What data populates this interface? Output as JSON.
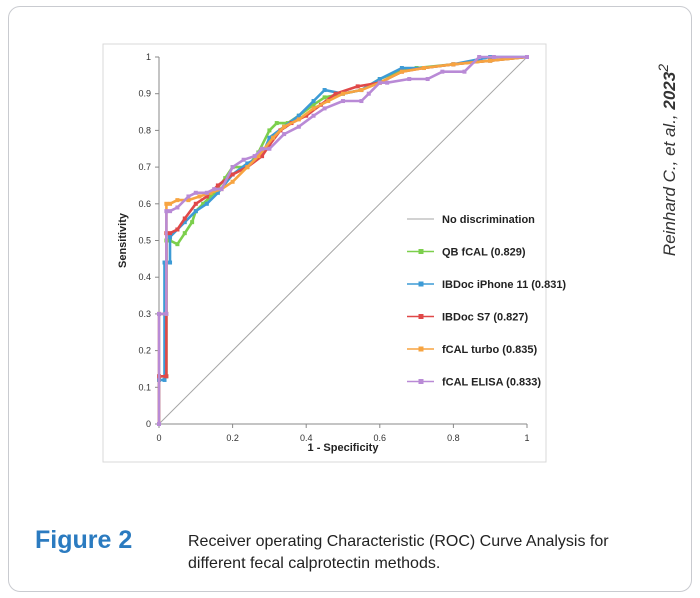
{
  "figure": {
    "label": "Figure 2",
    "caption": "Receiver operating Characteristic (ROC) Curve Analysis for different fecal calprotectin methods.",
    "citation_authors": "Reinhard C., et al., ",
    "citation_year": "2023",
    "citation_ref": "2"
  },
  "chart_data": {
    "type": "line",
    "title": "",
    "xlabel": "1 - Specificity",
    "ylabel": "Sensitivity",
    "xlim": [
      0,
      1
    ],
    "ylim": [
      0,
      1
    ],
    "x_ticks": [
      0,
      0.2,
      0.4,
      0.6,
      0.8,
      1
    ],
    "y_ticks": [
      0,
      0.1,
      0.2,
      0.3,
      0.4,
      0.5,
      0.6,
      0.7,
      0.8,
      0.9,
      1
    ],
    "x_tick_labels": [
      "0",
      "0.2",
      "0.4",
      "0.6",
      "0.8",
      "1"
    ],
    "y_tick_labels": [
      "0",
      "0.1",
      "0.2",
      "0.3",
      "0.4",
      "0.5",
      "0.6",
      "0.7",
      "0.8",
      "0.9",
      "1"
    ],
    "grid": false,
    "legend_position": "center-right",
    "series": [
      {
        "name": "No discrimination",
        "color": "#a6a6a6",
        "marker": false,
        "x": [
          0,
          1
        ],
        "y": [
          0,
          1
        ]
      },
      {
        "name": "QB fCAL (0.829)",
        "color": "#7ccf4c",
        "marker": true,
        "x": [
          0,
          0,
          0.02,
          0.02,
          0.03,
          0.05,
          0.07,
          0.09,
          0.1,
          0.12,
          0.15,
          0.18,
          0.2,
          0.24,
          0.27,
          0.3,
          0.32,
          0.35,
          0.38,
          0.42,
          0.45,
          0.5,
          0.55,
          0.6,
          0.65,
          0.7,
          0.8,
          0.9,
          1
        ],
        "y": [
          0,
          0.13,
          0.13,
          0.5,
          0.5,
          0.49,
          0.52,
          0.55,
          0.58,
          0.6,
          0.63,
          0.67,
          0.7,
          0.7,
          0.74,
          0.8,
          0.82,
          0.82,
          0.84,
          0.87,
          0.89,
          0.9,
          0.91,
          0.94,
          0.96,
          0.97,
          0.98,
          0.99,
          1
        ]
      },
      {
        "name": "IBDoc iPhone 11 (0.831)",
        "color": "#3d9bd6",
        "marker": true,
        "x": [
          0,
          0,
          0.015,
          0.015,
          0.03,
          0.03,
          0.05,
          0.07,
          0.1,
          0.13,
          0.16,
          0.2,
          0.24,
          0.28,
          0.3,
          0.34,
          0.38,
          0.42,
          0.45,
          0.5,
          0.55,
          0.6,
          0.66,
          0.72,
          0.8,
          0.9,
          1
        ],
        "y": [
          0,
          0.12,
          0.12,
          0.44,
          0.44,
          0.51,
          0.53,
          0.55,
          0.58,
          0.6,
          0.63,
          0.68,
          0.71,
          0.73,
          0.78,
          0.81,
          0.84,
          0.88,
          0.91,
          0.9,
          0.91,
          0.94,
          0.97,
          0.97,
          0.98,
          1,
          1
        ]
      },
      {
        "name": "IBDoc S7 (0.827)",
        "color": "#e04848",
        "marker": true,
        "x": [
          0,
          0,
          0.02,
          0.02,
          0.03,
          0.05,
          0.07,
          0.1,
          0.13,
          0.16,
          0.2,
          0.24,
          0.28,
          0.3,
          0.33,
          0.36,
          0.4,
          0.44,
          0.48,
          0.54,
          0.6,
          0.66,
          0.72,
          0.8,
          0.9,
          1
        ],
        "y": [
          0,
          0.13,
          0.13,
          0.52,
          0.52,
          0.53,
          0.56,
          0.6,
          0.62,
          0.65,
          0.68,
          0.7,
          0.73,
          0.76,
          0.8,
          0.82,
          0.84,
          0.87,
          0.9,
          0.92,
          0.93,
          0.96,
          0.97,
          0.98,
          0.99,
          1
        ]
      },
      {
        "name": "fCAL turbo (0.835)",
        "color": "#f7a441",
        "marker": true,
        "x": [
          0,
          0,
          0.02,
          0.02,
          0.03,
          0.05,
          0.08,
          0.11,
          0.14,
          0.17,
          0.2,
          0.24,
          0.27,
          0.31,
          0.34,
          0.38,
          0.42,
          0.46,
          0.5,
          0.55,
          0.6,
          0.66,
          0.72,
          0.8,
          0.9,
          1
        ],
        "y": [
          0,
          0.3,
          0.3,
          0.6,
          0.6,
          0.61,
          0.61,
          0.62,
          0.63,
          0.64,
          0.66,
          0.7,
          0.73,
          0.78,
          0.81,
          0.83,
          0.86,
          0.88,
          0.9,
          0.91,
          0.93,
          0.96,
          0.97,
          0.98,
          0.99,
          1
        ]
      },
      {
        "name": "fCAL ELISA (0.833)",
        "color": "#b98ad6",
        "marker": true,
        "x": [
          0,
          0,
          0.02,
          0.02,
          0.03,
          0.05,
          0.08,
          0.1,
          0.13,
          0.15,
          0.17,
          0.2,
          0.23,
          0.26,
          0.28,
          0.3,
          0.34,
          0.38,
          0.42,
          0.45,
          0.5,
          0.55,
          0.57,
          0.6,
          0.62,
          0.68,
          0.73,
          0.77,
          0.83,
          0.87,
          0.91,
          1
        ],
        "y": [
          0,
          0.3,
          0.3,
          0.58,
          0.58,
          0.59,
          0.62,
          0.63,
          0.63,
          0.64,
          0.64,
          0.7,
          0.72,
          0.73,
          0.75,
          0.75,
          0.79,
          0.81,
          0.84,
          0.86,
          0.88,
          0.88,
          0.9,
          0.93,
          0.93,
          0.94,
          0.94,
          0.96,
          0.96,
          1,
          1,
          1
        ]
      }
    ]
  }
}
